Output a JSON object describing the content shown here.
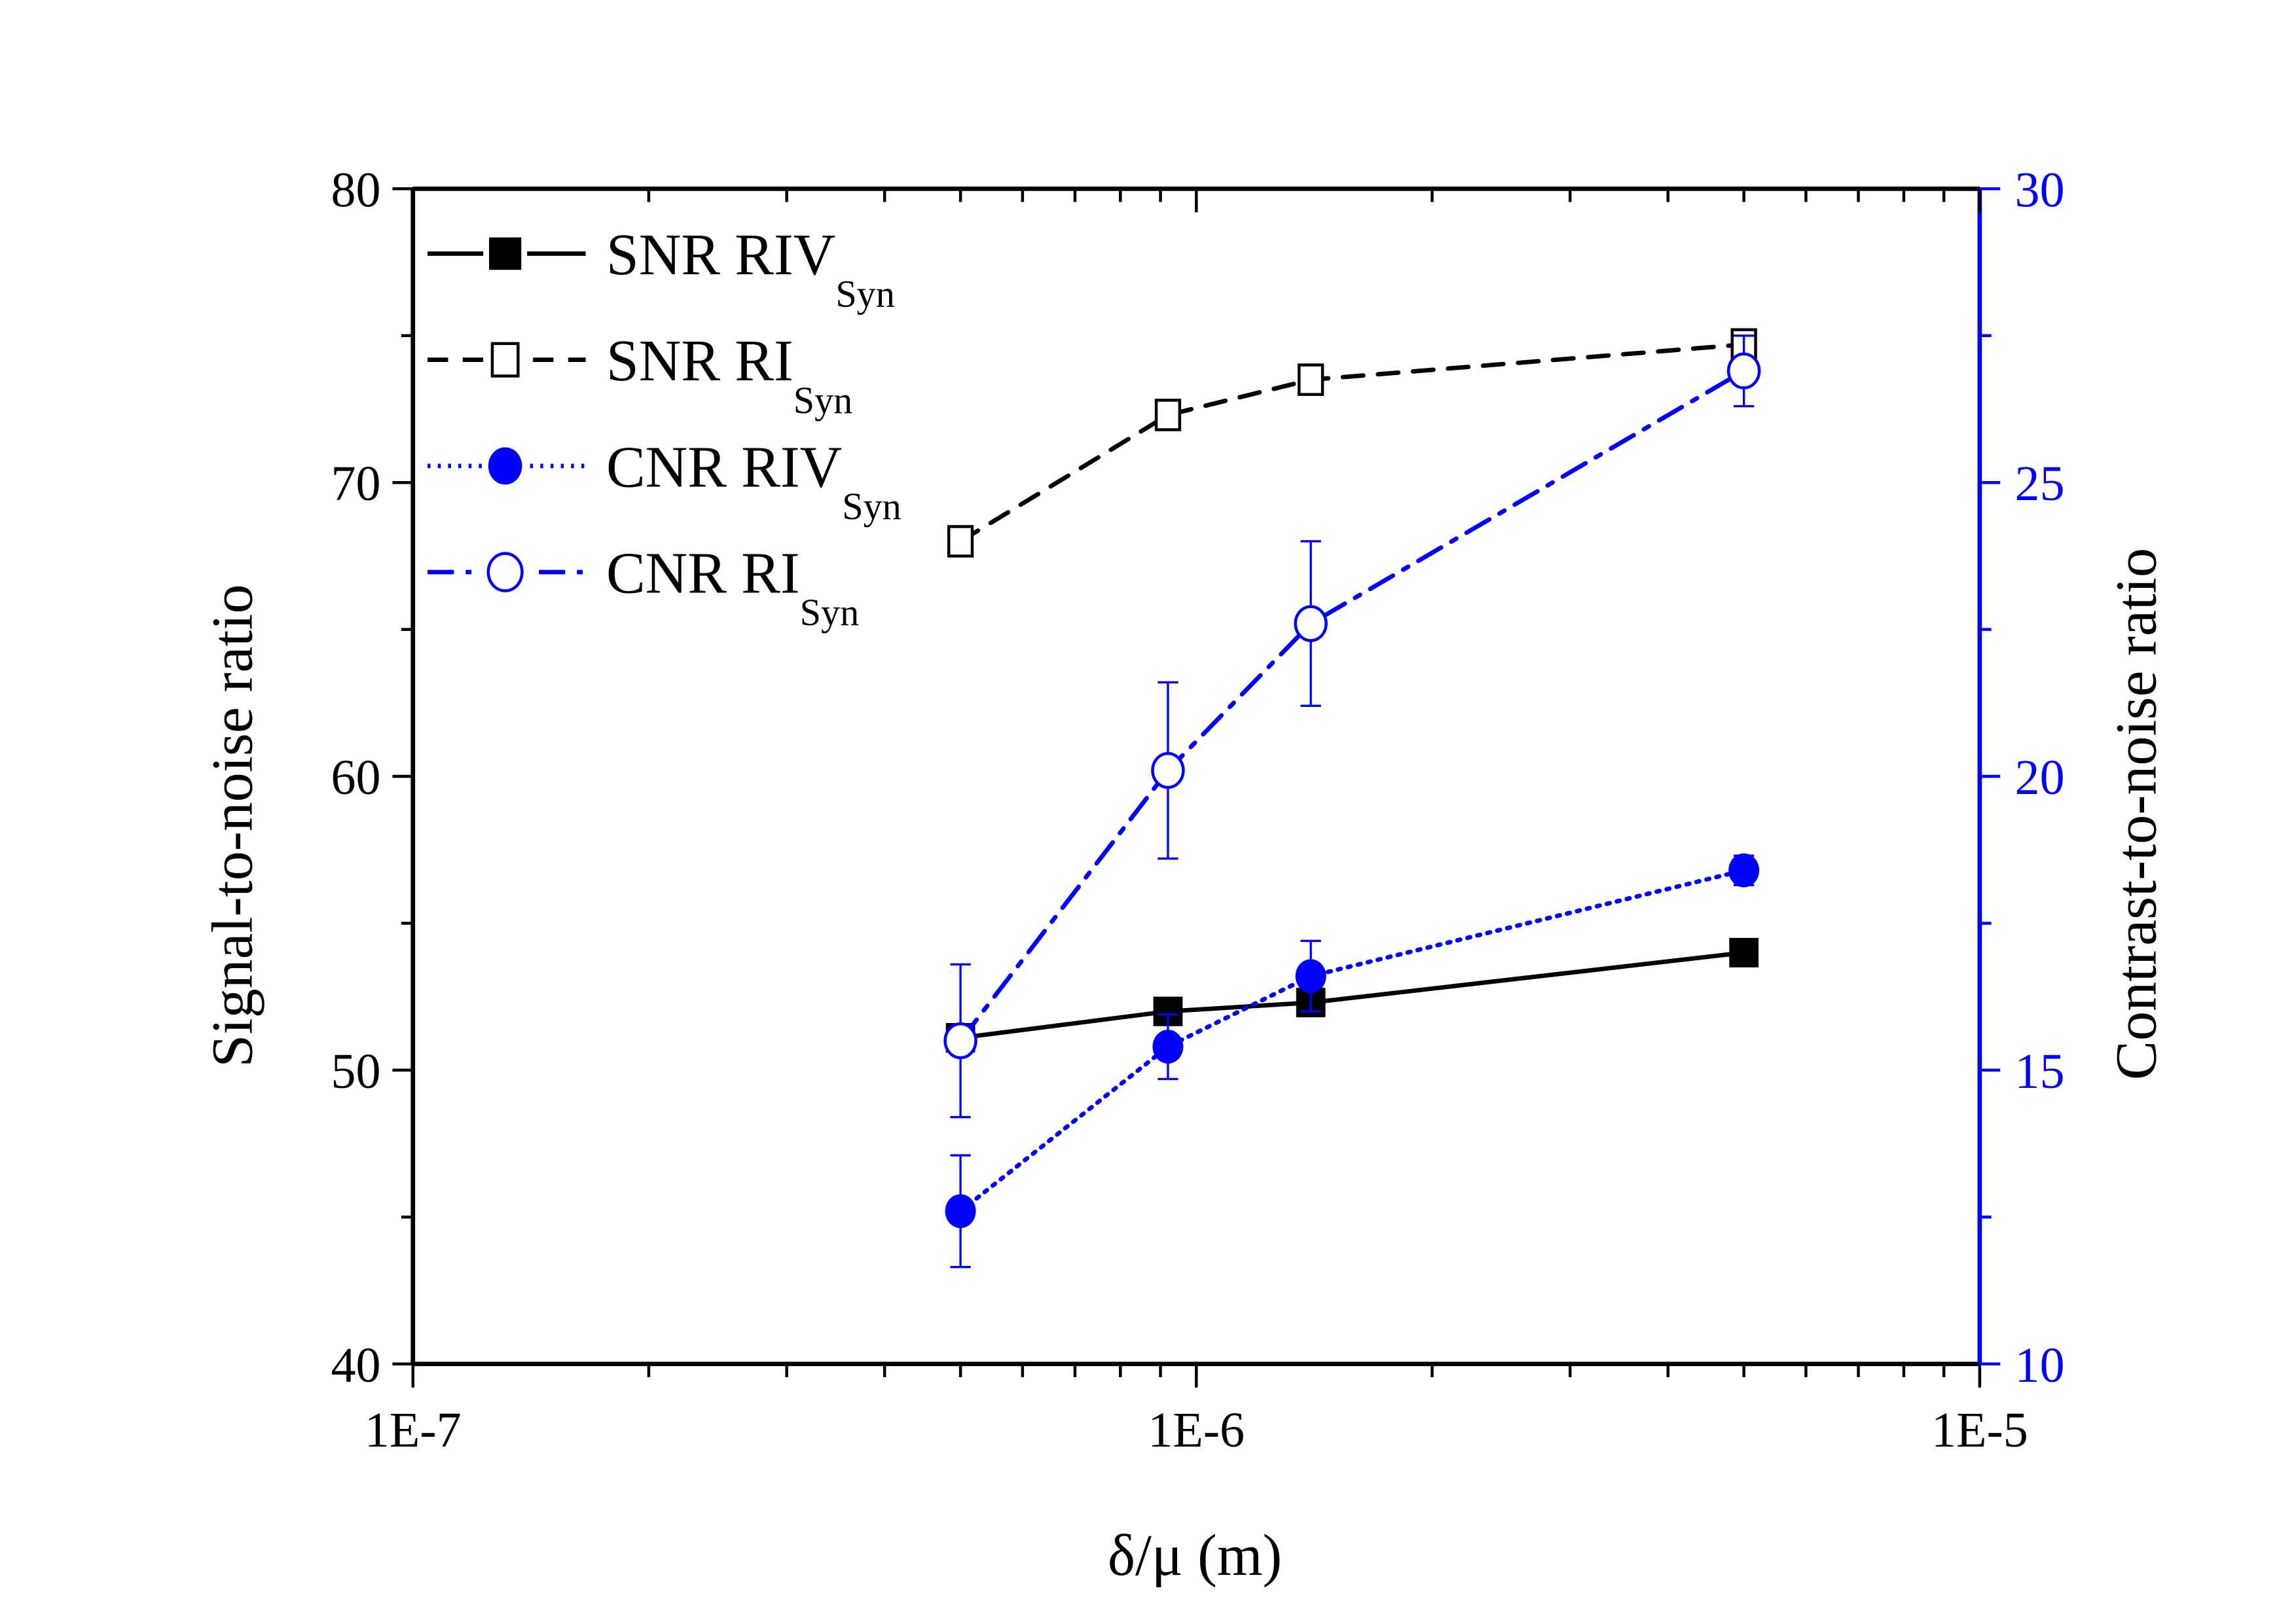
{
  "chart_data": {
    "type": "line",
    "title": "",
    "xlabel": "δ/μ (m)",
    "ylabel": "Signal-to-noise ratio",
    "y2label": "Contrast-to-noise ratio",
    "xscale": "log",
    "xlim": [
      1e-07,
      1e-05
    ],
    "ylim": [
      40,
      80
    ],
    "y2lim": [
      10,
      30
    ],
    "x_tick_labels": [
      "1E-7",
      "1E-6",
      "1E-5"
    ],
    "y_tick_labels": [
      "40",
      "50",
      "60",
      "70",
      "80"
    ],
    "y2_tick_labels": [
      "10",
      "15",
      "20",
      "25",
      "30"
    ],
    "grid": false,
    "legend_position": "top-left",
    "colors": {
      "black": "#000000",
      "blue": "#0000ff"
    },
    "x": [
      5e-07,
      9.2e-07,
      1.4e-06,
      5e-06
    ],
    "series": [
      {
        "name": "SNR RIV",
        "sub": "Syn",
        "axis": "left",
        "color": "#000000",
        "marker": "filled-square",
        "line": "solid",
        "values": [
          51.1,
          52.0,
          52.3,
          54.0
        ],
        "errors": [
          0.2,
          0.2,
          0.2,
          0.2
        ]
      },
      {
        "name": "SNR RI",
        "sub": "Syn",
        "axis": "left",
        "color": "#000000",
        "marker": "open-square",
        "line": "dashed",
        "values": [
          68.0,
          72.3,
          73.5,
          74.7
        ],
        "errors": [
          0.3,
          0.3,
          0.3,
          0.4
        ]
      },
      {
        "name": "CNR RIV",
        "sub": "Syn",
        "axis": "right",
        "color": "#0000ff",
        "marker": "filled-circle",
        "line": "dotted",
        "values": [
          12.6,
          15.4,
          16.6,
          18.4
        ],
        "errors": [
          0.95,
          0.55,
          0.6,
          0.25
        ]
      },
      {
        "name": "CNR RI",
        "sub": "Syn",
        "axis": "right",
        "color": "#0000ff",
        "marker": "open-circle",
        "line": "dash-dot",
        "values": [
          15.5,
          20.1,
          22.6,
          26.9
        ],
        "errors": [
          1.3,
          1.5,
          1.4,
          0.6
        ]
      }
    ]
  }
}
